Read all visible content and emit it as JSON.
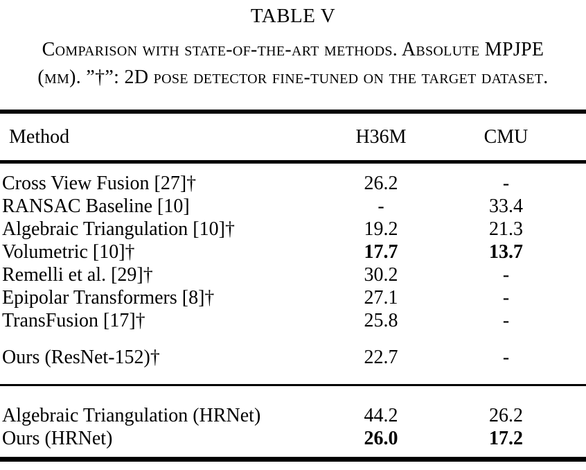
{
  "title": "TABLE V",
  "caption": {
    "line1": "Comparison with state-of-the-art methods. Absolute MPJPE",
    "line2": "(mm). ”†”: 2D pose detector fine-tuned on the target dataset."
  },
  "table": {
    "columns": [
      "Method",
      "H36M",
      "CMU"
    ],
    "sections": [
      {
        "rows": [
          {
            "method": "Cross View Fusion [27]†",
            "h36m": "26.2",
            "cmu": "-",
            "bold": []
          },
          {
            "method": "RANSAC Baseline [10]",
            "h36m": "-",
            "cmu": "33.4",
            "bold": []
          },
          {
            "method": "Algebraic Triangulation [10]†",
            "h36m": "19.2",
            "cmu": "21.3",
            "bold": []
          },
          {
            "method": "Volumetric [10]†",
            "h36m": "17.7",
            "cmu": "13.7",
            "bold": [
              "h36m",
              "cmu"
            ]
          },
          {
            "method": "Remelli et al. [29]†",
            "h36m": "30.2",
            "cmu": "-",
            "bold": []
          },
          {
            "method": "Epipolar Transformers [8]†",
            "h36m": "27.1",
            "cmu": "-",
            "bold": []
          },
          {
            "method": "TransFusion [17]†",
            "h36m": "25.8",
            "cmu": "-",
            "bold": []
          }
        ]
      },
      {
        "rows": [
          {
            "method": "Ours (ResNet-152)†",
            "h36m": "22.7",
            "cmu": "-",
            "bold": []
          }
        ]
      },
      {
        "rows": [
          {
            "method": "Algebraic Triangulation (HRNet)",
            "h36m": "44.2",
            "cmu": "26.2",
            "bold": []
          },
          {
            "method": "Ours (HRNet)",
            "h36m": "26.0",
            "cmu": "17.2",
            "bold": [
              "h36m",
              "cmu"
            ]
          }
        ]
      }
    ]
  },
  "colors": {
    "text": "#000000",
    "background": "#ffffff",
    "rule": "#000000"
  }
}
